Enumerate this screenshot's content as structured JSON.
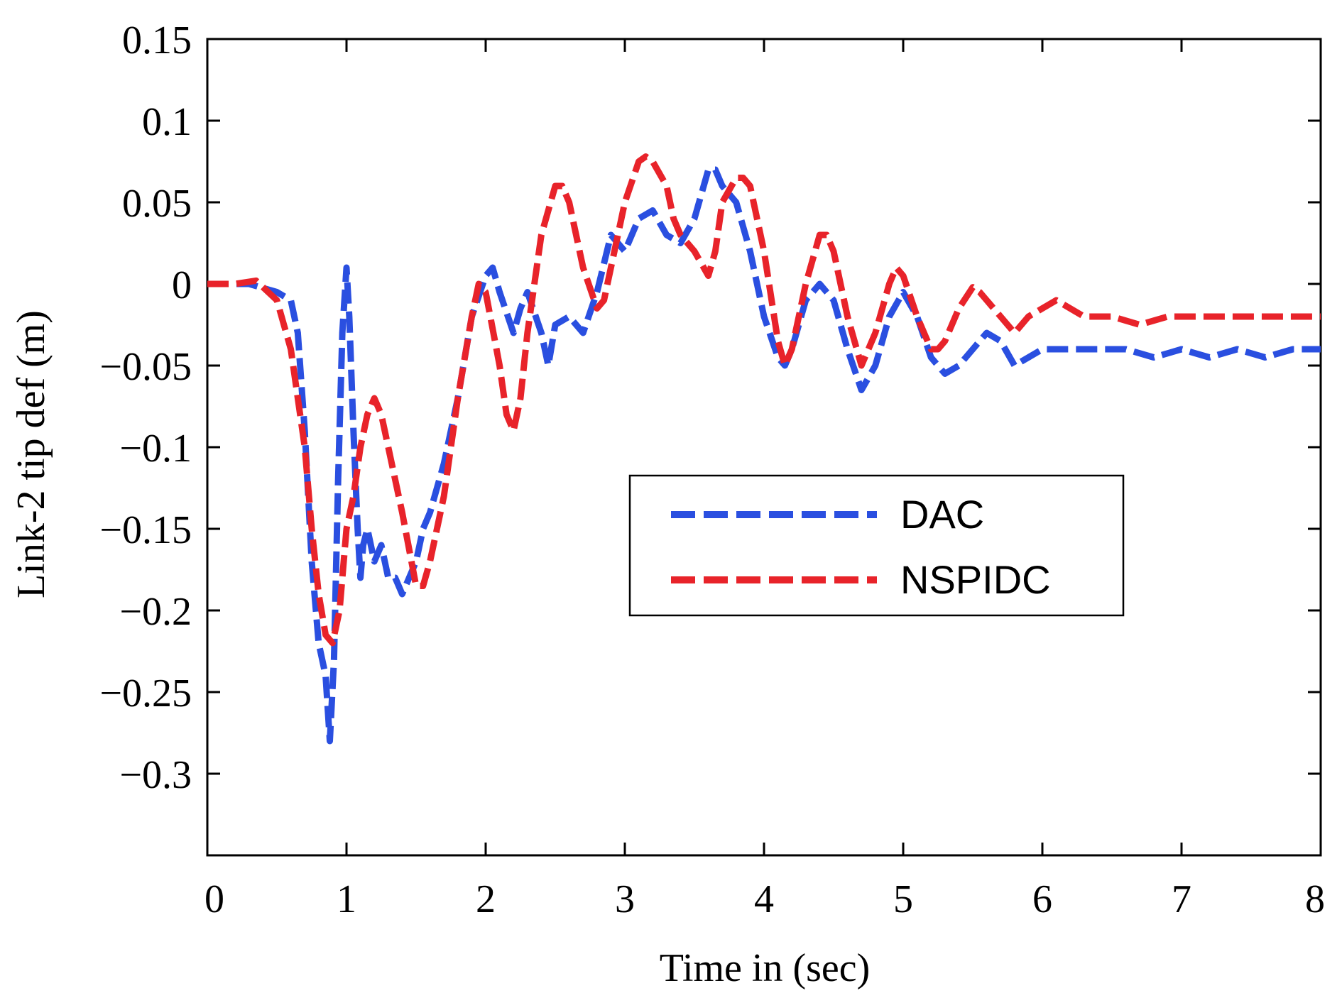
{
  "chart_data": {
    "type": "line",
    "title": "",
    "xlabel": "Time in (sec)",
    "ylabel": "Link-2 tip def (m)",
    "xlim": [
      0,
      8
    ],
    "ylim": [
      -0.35,
      0.15
    ],
    "x_ticks": [
      0,
      1,
      2,
      3,
      4,
      5,
      6,
      7,
      8
    ],
    "x_tick_labels": [
      "0",
      "1",
      "2",
      "3",
      "4",
      "5",
      "6",
      "7",
      "8"
    ],
    "y_ticks": [
      0.15,
      0.1,
      0.05,
      0,
      -0.05,
      -0.1,
      -0.15,
      -0.2,
      -0.25,
      -0.3
    ],
    "y_tick_labels": [
      "0.15",
      "0.1",
      "0.05",
      "0",
      "−0.05",
      "−0.1",
      "−0.15",
      "−0.2",
      "−0.25",
      "−0.3"
    ],
    "grid": false,
    "legend_position": "center-right",
    "series": [
      {
        "name": "DAC",
        "color": "#2a4fe0",
        "style": "dashed",
        "x": [
          0,
          0.3,
          0.5,
          0.6,
          0.65,
          0.7,
          0.75,
          0.8,
          0.85,
          0.88,
          0.91,
          0.94,
          0.97,
          1.0,
          1.02,
          1.05,
          1.08,
          1.1,
          1.12,
          1.15,
          1.2,
          1.25,
          1.3,
          1.35,
          1.4,
          1.45,
          1.5,
          1.55,
          1.6,
          1.7,
          1.8,
          1.9,
          2.0,
          2.05,
          2.1,
          2.2,
          2.25,
          2.3,
          2.4,
          2.45,
          2.5,
          2.6,
          2.7,
          2.8,
          2.9,
          3.0,
          3.1,
          3.2,
          3.3,
          3.4,
          3.5,
          3.6,
          3.65,
          3.7,
          3.8,
          3.9,
          4.0,
          4.1,
          4.15,
          4.2,
          4.3,
          4.4,
          4.5,
          4.6,
          4.7,
          4.8,
          4.9,
          5.0,
          5.1,
          5.2,
          5.3,
          5.4,
          5.5,
          5.6,
          5.7,
          5.8,
          5.9,
          6.0,
          6.2,
          6.4,
          6.6,
          6.8,
          7.0,
          7.2,
          7.4,
          7.6,
          7.8,
          8.0
        ],
        "values": [
          0,
          0,
          -0.005,
          -0.01,
          -0.03,
          -0.09,
          -0.17,
          -0.22,
          -0.24,
          -0.28,
          -0.23,
          -0.12,
          -0.03,
          0.01,
          -0.02,
          -0.09,
          -0.15,
          -0.18,
          -0.16,
          -0.15,
          -0.17,
          -0.16,
          -0.18,
          -0.18,
          -0.19,
          -0.18,
          -0.17,
          -0.15,
          -0.14,
          -0.11,
          -0.07,
          -0.02,
          0.005,
          0.01,
          -0.005,
          -0.03,
          -0.015,
          -0.005,
          -0.03,
          -0.05,
          -0.025,
          -0.02,
          -0.03,
          -0.005,
          0.03,
          0.02,
          0.04,
          0.045,
          0.03,
          0.025,
          0.04,
          0.07,
          0.07,
          0.06,
          0.05,
          0.02,
          -0.02,
          -0.045,
          -0.05,
          -0.04,
          -0.01,
          0.0,
          -0.01,
          -0.04,
          -0.065,
          -0.05,
          -0.02,
          -0.005,
          -0.02,
          -0.045,
          -0.055,
          -0.05,
          -0.04,
          -0.03,
          -0.035,
          -0.05,
          -0.045,
          -0.04,
          -0.04,
          -0.04,
          -0.04,
          -0.045,
          -0.04,
          -0.045,
          -0.04,
          -0.045,
          -0.04,
          -0.04
        ]
      },
      {
        "name": "NSPIDC",
        "color": "#e8232a",
        "style": "dashed",
        "x": [
          0,
          0.2,
          0.35,
          0.5,
          0.6,
          0.7,
          0.75,
          0.8,
          0.85,
          0.9,
          0.95,
          1.0,
          1.05,
          1.1,
          1.15,
          1.2,
          1.25,
          1.3,
          1.4,
          1.5,
          1.55,
          1.6,
          1.7,
          1.8,
          1.9,
          1.95,
          2.0,
          2.1,
          2.15,
          2.2,
          2.25,
          2.3,
          2.4,
          2.5,
          2.55,
          2.6,
          2.7,
          2.8,
          2.85,
          2.9,
          3.0,
          3.1,
          3.15,
          3.2,
          3.3,
          3.35,
          3.4,
          3.5,
          3.6,
          3.65,
          3.7,
          3.8,
          3.85,
          3.9,
          4.0,
          4.1,
          4.15,
          4.2,
          4.3,
          4.4,
          4.45,
          4.5,
          4.6,
          4.7,
          4.8,
          4.9,
          4.95,
          5.0,
          5.1,
          5.2,
          5.25,
          5.3,
          5.4,
          5.5,
          5.55,
          5.6,
          5.7,
          5.8,
          5.9,
          6.0,
          6.1,
          6.3,
          6.5,
          6.7,
          6.9,
          7.1,
          7.3,
          7.5,
          7.7,
          7.9,
          8.0
        ],
        "values": [
          0,
          0,
          0.002,
          -0.01,
          -0.04,
          -0.1,
          -0.15,
          -0.19,
          -0.215,
          -0.22,
          -0.2,
          -0.15,
          -0.13,
          -0.1,
          -0.08,
          -0.07,
          -0.08,
          -0.1,
          -0.14,
          -0.185,
          -0.185,
          -0.17,
          -0.13,
          -0.07,
          -0.02,
          0.0,
          -0.005,
          -0.05,
          -0.08,
          -0.09,
          -0.07,
          -0.03,
          0.03,
          0.06,
          0.06,
          0.05,
          0.01,
          -0.015,
          -0.01,
          0.01,
          0.05,
          0.075,
          0.078,
          0.075,
          0.06,
          0.04,
          0.03,
          0.02,
          0.005,
          0.02,
          0.05,
          0.065,
          0.065,
          0.06,
          0.02,
          -0.035,
          -0.05,
          -0.04,
          0.0,
          0.03,
          0.03,
          0.02,
          -0.02,
          -0.05,
          -0.03,
          0.0,
          0.01,
          0.005,
          -0.02,
          -0.04,
          -0.04,
          -0.035,
          -0.015,
          -0.002,
          -0.005,
          -0.01,
          -0.02,
          -0.03,
          -0.02,
          -0.015,
          -0.01,
          -0.02,
          -0.02,
          -0.025,
          -0.02,
          -0.02,
          -0.02,
          -0.02,
          -0.02,
          -0.02,
          -0.02
        ]
      }
    ]
  }
}
